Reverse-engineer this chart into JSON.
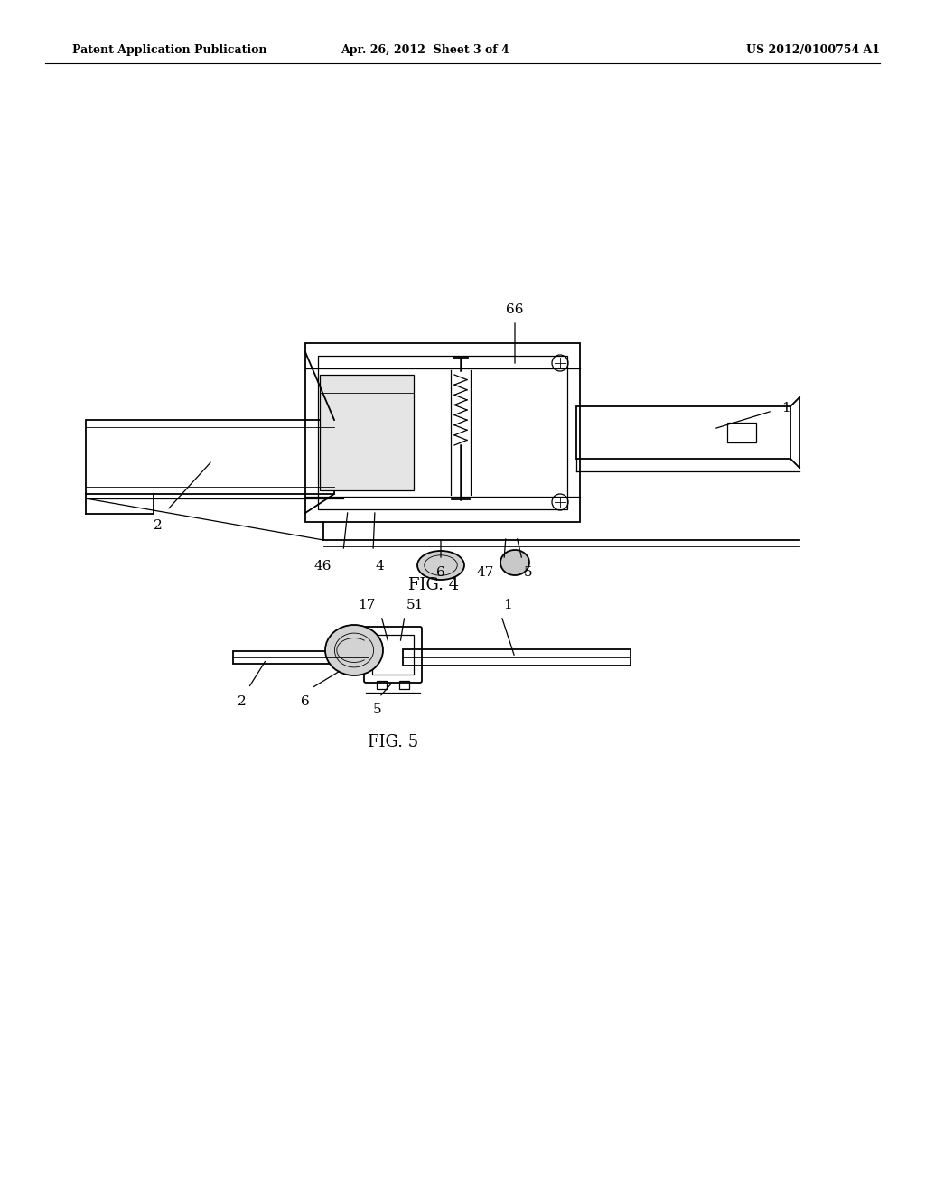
{
  "background_color": "#ffffff",
  "header_left": "Patent Application Publication",
  "header_center": "Apr. 26, 2012  Sheet 3 of 4",
  "header_right": "US 2012/0100754 A1",
  "fig4_caption": "FIG. 4",
  "fig5_caption": "FIG. 5",
  "line_color": "#000000"
}
